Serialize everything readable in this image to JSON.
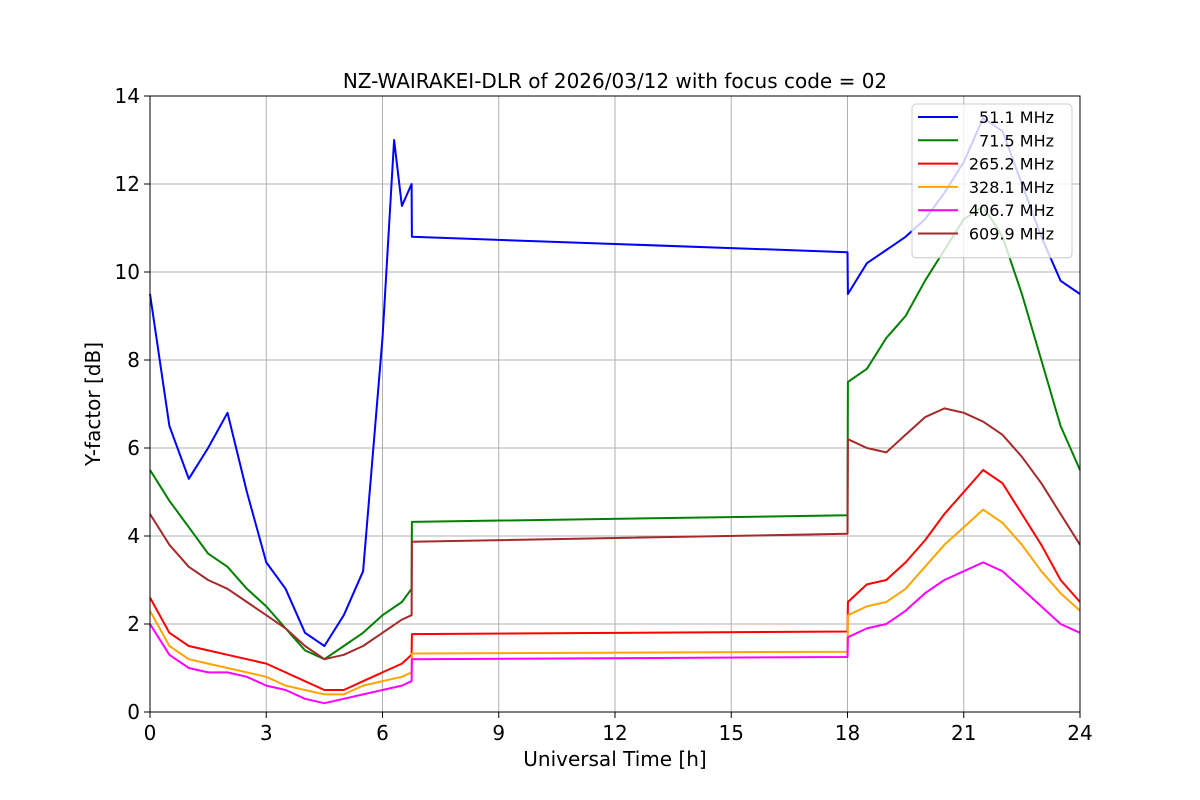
{
  "chart_data": {
    "type": "line",
    "title": "NZ-WAIRAKEI-DLR of 2026/03/12 with focus code = 02",
    "xlabel": "Universal Time [h]",
    "ylabel": "Y-factor [dB]",
    "xlim": [
      0,
      24
    ],
    "ylim": [
      0,
      14
    ],
    "xticks": [
      0,
      3,
      6,
      9,
      12,
      15,
      18,
      21,
      24
    ],
    "yticks": [
      0,
      2,
      4,
      6,
      8,
      10,
      12,
      14
    ],
    "grid": true,
    "legend_position": "top-right",
    "series": [
      {
        "name": "51.1 MHz",
        "color": "#0000ff",
        "points": [
          [
            0,
            9.5
          ],
          [
            0.5,
            6.5
          ],
          [
            1,
            5.3
          ],
          [
            1.5,
            6
          ],
          [
            2,
            6.8
          ],
          [
            2.5,
            5
          ],
          [
            3,
            3.4
          ],
          [
            3.5,
            2.8
          ],
          [
            4,
            1.8
          ],
          [
            4.5,
            1.5
          ],
          [
            5,
            2.2
          ],
          [
            5.5,
            3.2
          ],
          [
            6,
            8.5
          ],
          [
            6.3,
            13
          ],
          [
            6.5,
            11.5
          ],
          [
            6.75,
            12
          ],
          [
            6.76,
            10.8
          ],
          [
            18,
            10.45
          ],
          [
            18.01,
            9.5
          ],
          [
            18.5,
            10.2
          ],
          [
            19,
            10.5
          ],
          [
            19.5,
            10.8
          ],
          [
            20,
            11.2
          ],
          [
            20.5,
            11.8
          ],
          [
            21,
            12.5
          ],
          [
            21.5,
            13.5
          ],
          [
            22,
            13.2
          ],
          [
            22.5,
            12
          ],
          [
            23,
            10.8
          ],
          [
            23.5,
            9.8
          ],
          [
            24,
            9.5
          ]
        ]
      },
      {
        "name": "71.5 MHz",
        "color": "#008000",
        "points": [
          [
            0,
            5.5
          ],
          [
            0.5,
            4.8
          ],
          [
            1,
            4.2
          ],
          [
            1.5,
            3.6
          ],
          [
            2,
            3.3
          ],
          [
            2.5,
            2.8
          ],
          [
            3,
            2.4
          ],
          [
            3.5,
            1.9
          ],
          [
            4,
            1.4
          ],
          [
            4.5,
            1.2
          ],
          [
            5,
            1.5
          ],
          [
            5.5,
            1.8
          ],
          [
            6,
            2.2
          ],
          [
            6.5,
            2.5
          ],
          [
            6.75,
            2.8
          ],
          [
            6.76,
            4.32
          ],
          [
            18,
            4.47
          ],
          [
            18.01,
            7.5
          ],
          [
            18.5,
            7.8
          ],
          [
            19,
            8.5
          ],
          [
            19.5,
            9
          ],
          [
            20,
            9.8
          ],
          [
            20.5,
            10.5
          ],
          [
            21,
            11.2
          ],
          [
            21.5,
            11.5
          ],
          [
            22,
            10.8
          ],
          [
            22.5,
            9.5
          ],
          [
            23,
            8
          ],
          [
            23.5,
            6.5
          ],
          [
            24,
            5.5
          ]
        ]
      },
      {
        "name": "265.2 MHz",
        "color": "#ff0000",
        "points": [
          [
            0,
            2.6
          ],
          [
            0.5,
            1.8
          ],
          [
            1,
            1.5
          ],
          [
            1.5,
            1.4
          ],
          [
            2,
            1.3
          ],
          [
            2.5,
            1.2
          ],
          [
            3,
            1.1
          ],
          [
            3.5,
            0.9
          ],
          [
            4,
            0.7
          ],
          [
            4.5,
            0.5
          ],
          [
            5,
            0.5
          ],
          [
            5.5,
            0.7
          ],
          [
            6,
            0.9
          ],
          [
            6.5,
            1.1
          ],
          [
            6.75,
            1.3
          ],
          [
            6.76,
            1.77
          ],
          [
            18,
            1.83
          ],
          [
            18.01,
            2.5
          ],
          [
            18.5,
            2.9
          ],
          [
            19,
            3
          ],
          [
            19.5,
            3.4
          ],
          [
            20,
            3.9
          ],
          [
            20.5,
            4.5
          ],
          [
            21,
            5
          ],
          [
            21.5,
            5.5
          ],
          [
            22,
            5.2
          ],
          [
            22.5,
            4.5
          ],
          [
            23,
            3.8
          ],
          [
            23.5,
            3
          ],
          [
            24,
            2.5
          ]
        ]
      },
      {
        "name": "328.1 MHz",
        "color": "#ffa500",
        "points": [
          [
            0,
            2.3
          ],
          [
            0.5,
            1.5
          ],
          [
            1,
            1.2
          ],
          [
            1.5,
            1.1
          ],
          [
            2,
            1
          ],
          [
            2.5,
            0.9
          ],
          [
            3,
            0.8
          ],
          [
            3.5,
            0.6
          ],
          [
            4,
            0.5
          ],
          [
            4.5,
            0.4
          ],
          [
            5,
            0.4
          ],
          [
            5.5,
            0.6
          ],
          [
            6,
            0.7
          ],
          [
            6.5,
            0.8
          ],
          [
            6.75,
            0.9
          ],
          [
            6.76,
            1.33
          ],
          [
            18,
            1.37
          ],
          [
            18.01,
            2.2
          ],
          [
            18.5,
            2.4
          ],
          [
            19,
            2.5
          ],
          [
            19.5,
            2.8
          ],
          [
            20,
            3.3
          ],
          [
            20.5,
            3.8
          ],
          [
            21,
            4.2
          ],
          [
            21.5,
            4.6
          ],
          [
            22,
            4.3
          ],
          [
            22.5,
            3.8
          ],
          [
            23,
            3.2
          ],
          [
            23.5,
            2.7
          ],
          [
            24,
            2.3
          ]
        ]
      },
      {
        "name": "406.7 MHz",
        "color": "#ff00ff",
        "points": [
          [
            0,
            2
          ],
          [
            0.5,
            1.3
          ],
          [
            1,
            1
          ],
          [
            1.5,
            0.9
          ],
          [
            2,
            0.9
          ],
          [
            2.5,
            0.8
          ],
          [
            3,
            0.6
          ],
          [
            3.5,
            0.5
          ],
          [
            4,
            0.3
          ],
          [
            4.5,
            0.2
          ],
          [
            5,
            0.3
          ],
          [
            5.5,
            0.4
          ],
          [
            6,
            0.5
          ],
          [
            6.5,
            0.6
          ],
          [
            6.75,
            0.7
          ],
          [
            6.76,
            1.2
          ],
          [
            18,
            1.25
          ],
          [
            18.01,
            1.7
          ],
          [
            18.5,
            1.9
          ],
          [
            19,
            2
          ],
          [
            19.5,
            2.3
          ],
          [
            20,
            2.7
          ],
          [
            20.5,
            3
          ],
          [
            21,
            3.2
          ],
          [
            21.5,
            3.4
          ],
          [
            22,
            3.2
          ],
          [
            22.5,
            2.8
          ],
          [
            23,
            2.4
          ],
          [
            23.5,
            2
          ],
          [
            24,
            1.8
          ]
        ]
      },
      {
        "name": "609.9 MHz",
        "color": "#a52a2a",
        "points": [
          [
            0,
            4.5
          ],
          [
            0.5,
            3.8
          ],
          [
            1,
            3.3
          ],
          [
            1.5,
            3
          ],
          [
            2,
            2.8
          ],
          [
            2.5,
            2.5
          ],
          [
            3,
            2.2
          ],
          [
            3.5,
            1.9
          ],
          [
            4,
            1.5
          ],
          [
            4.5,
            1.2
          ],
          [
            5,
            1.3
          ],
          [
            5.5,
            1.5
          ],
          [
            6,
            1.8
          ],
          [
            6.5,
            2.1
          ],
          [
            6.75,
            2.2
          ],
          [
            6.76,
            3.87
          ],
          [
            18,
            4.05
          ],
          [
            18.01,
            6.2
          ],
          [
            18.5,
            6
          ],
          [
            19,
            5.9
          ],
          [
            19.5,
            6.3
          ],
          [
            20,
            6.7
          ],
          [
            20.5,
            6.9
          ],
          [
            21,
            6.8
          ],
          [
            21.5,
            6.6
          ],
          [
            22,
            6.3
          ],
          [
            22.5,
            5.8
          ],
          [
            23,
            5.2
          ],
          [
            23.5,
            4.5
          ],
          [
            24,
            3.8
          ]
        ]
      }
    ]
  }
}
